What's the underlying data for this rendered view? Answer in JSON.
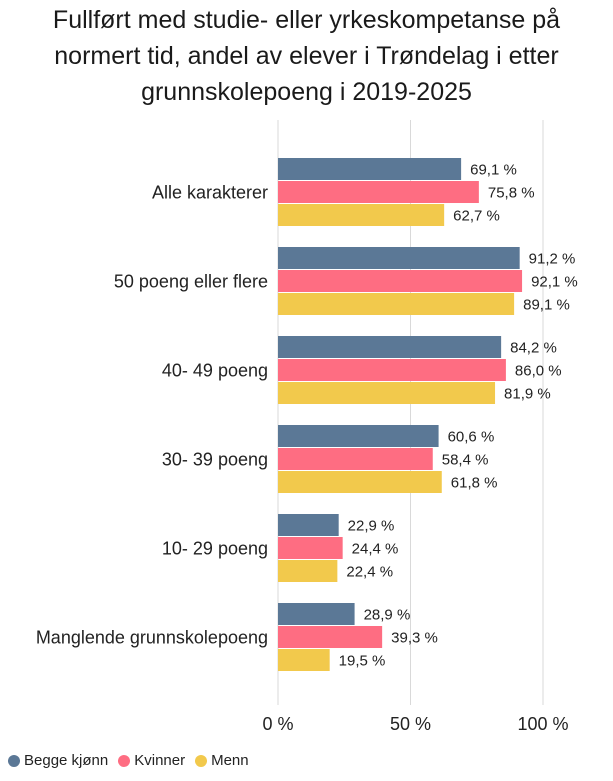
{
  "title_lines": [
    "Fullført med studie- eller yrkeskompetanse på",
    "normert tid, andel av elever i Trøndelag i etter",
    "grunnskolepoeng i 2019-2025"
  ],
  "chart_data": {
    "type": "bar",
    "orientation": "horizontal",
    "title": "Fullført med studie- eller yrkeskompetanse på normert tid, andel av elever i Trøndelag i etter grunnskolepoeng i 2019-2025",
    "categories": [
      "Alle karakterer",
      "50 poeng eller flere",
      "40- 49 poeng",
      "30- 39 poeng",
      "10- 29 poeng",
      "Manglende grunnskolepoeng"
    ],
    "series": [
      {
        "name": "Begge kjønn",
        "color": "#5b7896",
        "values": [
          69.1,
          91.2,
          84.2,
          60.6,
          22.9,
          28.9
        ],
        "labels": [
          "69,1 %",
          "91,2 %",
          "84,2 %",
          "60,6 %",
          "22,9 %",
          "28,9 %"
        ]
      },
      {
        "name": "Kvinner",
        "color": "#fe6d82",
        "values": [
          75.8,
          92.1,
          86.0,
          58.4,
          24.4,
          39.3
        ],
        "labels": [
          "75,8 %",
          "92,1 %",
          "86,0 %",
          "58,4 %",
          "24,4 %",
          "39,3 %"
        ]
      },
      {
        "name": "Menn",
        "color": "#f2c94c",
        "values": [
          62.7,
          89.1,
          81.9,
          61.8,
          22.4,
          19.5
        ],
        "labels": [
          "62,7 %",
          "89,1 %",
          "81,9 %",
          "61,8 %",
          "22,4 %",
          "19,5 %"
        ]
      }
    ],
    "xlim": [
      0,
      100
    ],
    "xticks": [
      0,
      50,
      100
    ],
    "xtick_labels": [
      "0 %",
      "50 %",
      "100 %"
    ],
    "grid": true,
    "legend_position": "bottom-left"
  }
}
